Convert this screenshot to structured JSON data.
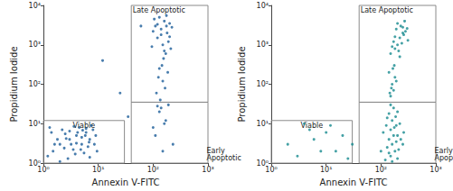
{
  "chart_data": [
    {
      "type": "scatter",
      "xlabel": "Annexin V-FITC",
      "ylabel": "Propidium Iodide",
      "log": true,
      "grid": false,
      "color": "#1c5d99",
      "xlim": [
        1,
        1000
      ],
      "ylim": [
        1,
        10000
      ],
      "xticks": [
        {
          "value": 1,
          "label": "10⁰"
        },
        {
          "value": 10,
          "label": "10¹"
        },
        {
          "value": 100,
          "label": "10²"
        },
        {
          "value": 1000,
          "label": "10³"
        }
      ],
      "yticks": [
        {
          "value": 1,
          "label": "10⁰"
        },
        {
          "value": 10,
          "label": "10¹"
        },
        {
          "value": 100,
          "label": "10²"
        },
        {
          "value": 1000,
          "label": "10³"
        },
        {
          "value": 10000,
          "label": "10⁴"
        }
      ],
      "points": [
        [
          1.5,
          2
        ],
        [
          2,
          3
        ],
        [
          3,
          4
        ],
        [
          4,
          5
        ],
        [
          5,
          3
        ],
        [
          6,
          6
        ],
        [
          2.5,
          5.5
        ],
        [
          1.2,
          1.5
        ],
        [
          3.5,
          2.2
        ],
        [
          7,
          4
        ],
        [
          8,
          7
        ],
        [
          4.5,
          8
        ],
        [
          2.2,
          7
        ],
        [
          1.8,
          4
        ],
        [
          5.5,
          1.8
        ],
        [
          6.5,
          2.6
        ],
        [
          3,
          6.5
        ],
        [
          4,
          3.2
        ],
        [
          2.8,
          1.3
        ],
        [
          9,
          5
        ],
        [
          1.4,
          6
        ],
        [
          7.5,
          9
        ],
        [
          5,
          4.5
        ],
        [
          3.8,
          1.7
        ],
        [
          2.4,
          2.4
        ],
        [
          6,
          7.5
        ],
        [
          4.2,
          6
        ],
        [
          8.5,
          3
        ],
        [
          1.6,
          3
        ],
        [
          3.2,
          3
        ],
        [
          5.8,
          5
        ],
        [
          2,
          1.1
        ],
        [
          7,
          1.4
        ],
        [
          4.8,
          2.2
        ],
        [
          3.6,
          8.5
        ],
        [
          1.3,
          8
        ],
        [
          6.8,
          3.4
        ],
        [
          2.6,
          4.2
        ],
        [
          5.2,
          6.8
        ],
        [
          9.5,
          2
        ],
        [
          110,
          3000
        ],
        [
          140,
          2500
        ],
        [
          160,
          4000
        ],
        [
          180,
          2000
        ],
        [
          120,
          1500
        ],
        [
          200,
          3500
        ],
        [
          150,
          1000
        ],
        [
          130,
          5000
        ],
        [
          170,
          600
        ],
        [
          100,
          2200
        ],
        [
          190,
          1200
        ],
        [
          210,
          800
        ],
        [
          145,
          300
        ],
        [
          125,
          150
        ],
        [
          165,
          80
        ],
        [
          115,
          60
        ],
        [
          135,
          40
        ],
        [
          185,
          200
        ],
        [
          155,
          450
        ],
        [
          175,
          3000
        ],
        [
          95,
          900
        ],
        [
          220,
          2800
        ],
        [
          140,
          1800
        ],
        [
          160,
          700
        ],
        [
          130,
          250
        ],
        [
          150,
          120
        ],
        [
          120,
          3300
        ],
        [
          200,
          1600
        ],
        [
          105,
          4500
        ],
        [
          175,
          5500
        ],
        [
          130,
          20
        ],
        [
          160,
          10
        ],
        [
          110,
          5
        ],
        [
          150,
          2
        ],
        [
          140,
          25
        ],
        [
          170,
          12
        ],
        [
          190,
          30
        ],
        [
          100,
          8
        ],
        [
          120,
          28
        ],
        [
          230,
          3
        ],
        [
          25,
          60
        ],
        [
          12,
          400
        ],
        [
          60,
          3000
        ],
        [
          35,
          15
        ]
      ],
      "regions": [
        {
          "label": "Viable",
          "x": [
            1,
            30
          ],
          "y": [
            1,
            12
          ]
        },
        {
          "label": "Late Apoptotic",
          "x": [
            40,
            1000
          ],
          "y": [
            35,
            10000
          ]
        },
        {
          "label": "Early Apoptotic",
          "x": [
            40,
            1000
          ],
          "y": [
            1,
            35
          ]
        }
      ]
    },
    {
      "type": "scatter",
      "xlabel": "Annexin V-FITC",
      "ylabel": "Propidium Iodide",
      "log": true,
      "grid": false,
      "color": "#178a8f",
      "xlim": [
        1,
        1000
      ],
      "ylim": [
        1,
        10000
      ],
      "xticks": [
        {
          "value": 1,
          "label": "10⁰"
        },
        {
          "value": 10,
          "label": "10¹"
        },
        {
          "value": 100,
          "label": "10²"
        },
        {
          "value": 1000,
          "label": "10³"
        }
      ],
      "yticks": [
        {
          "value": 1,
          "label": "10⁰"
        },
        {
          "value": 10,
          "label": "10¹"
        },
        {
          "value": 100,
          "label": "10²"
        },
        {
          "value": 1000,
          "label": "10³"
        },
        {
          "value": 10000,
          "label": "10⁴"
        }
      ],
      "points": [
        [
          2,
          3
        ],
        [
          5,
          7
        ],
        [
          8,
          2
        ],
        [
          12,
          9
        ],
        [
          3,
          1.5
        ],
        [
          20,
          5
        ],
        [
          15,
          2
        ],
        [
          6,
          4
        ],
        [
          25,
          1.3
        ],
        [
          10,
          6
        ],
        [
          30,
          3
        ],
        [
          4,
          10
        ],
        [
          120,
          1.2
        ],
        [
          150,
          1.5
        ],
        [
          180,
          2
        ],
        [
          200,
          1.3
        ],
        [
          130,
          2.5
        ],
        [
          160,
          3
        ],
        [
          140,
          4
        ],
        [
          170,
          5
        ],
        [
          190,
          3.5
        ],
        [
          210,
          2.2
        ],
        [
          110,
          6
        ],
        [
          150,
          7
        ],
        [
          175,
          8
        ],
        [
          200,
          5
        ],
        [
          230,
          4
        ],
        [
          125,
          9
        ],
        [
          160,
          12
        ],
        [
          185,
          15
        ],
        [
          140,
          18
        ],
        [
          200,
          20
        ],
        [
          170,
          25
        ],
        [
          150,
          30
        ],
        [
          130,
          14
        ],
        [
          220,
          10
        ],
        [
          250,
          3
        ],
        [
          100,
          2
        ],
        [
          190,
          9
        ],
        [
          160,
          1.1
        ],
        [
          140,
          1.8
        ],
        [
          260,
          6
        ],
        [
          150,
          50
        ],
        [
          170,
          70
        ],
        [
          160,
          100
        ],
        [
          180,
          150
        ],
        [
          140,
          200
        ],
        [
          190,
          120
        ],
        [
          165,
          250
        ],
        [
          155,
          80
        ],
        [
          175,
          300
        ],
        [
          145,
          60
        ],
        [
          150,
          600
        ],
        [
          180,
          800
        ],
        [
          200,
          1000
        ],
        [
          220,
          1500
        ],
        [
          250,
          2000
        ],
        [
          170,
          1200
        ],
        [
          190,
          2500
        ],
        [
          230,
          3000
        ],
        [
          210,
          700
        ],
        [
          260,
          1800
        ],
        [
          160,
          900
        ],
        [
          280,
          2200
        ],
        [
          240,
          1100
        ],
        [
          200,
          3500
        ],
        [
          300,
          2600
        ],
        [
          270,
          4000
        ],
        [
          220,
          500
        ],
        [
          180,
          1600
        ],
        [
          310,
          1300
        ],
        [
          250,
          2800
        ]
      ],
      "regions": [
        {
          "label": "Viable",
          "x": [
            1,
            30
          ],
          "y": [
            1,
            12
          ]
        },
        {
          "label": "Late Apoptotic",
          "x": [
            40,
            1000
          ],
          "y": [
            35,
            10000
          ]
        },
        {
          "label": "Early Apoptotic",
          "x": [
            40,
            1000
          ],
          "y": [
            1,
            35
          ]
        }
      ]
    }
  ]
}
